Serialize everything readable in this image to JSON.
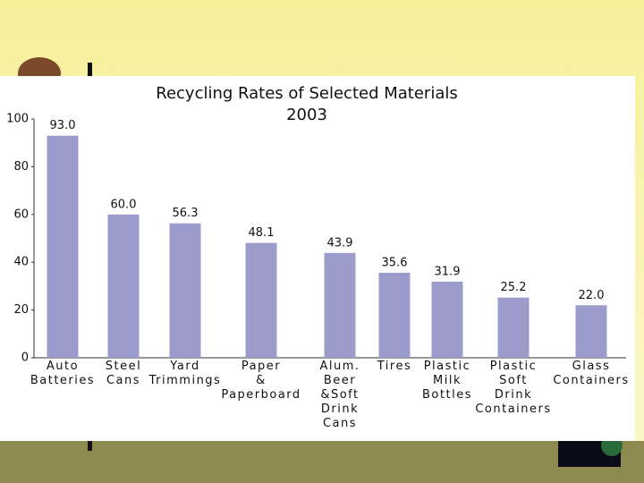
{
  "chart_data": {
    "type": "bar",
    "title": "Recycling Rates of Selected Materials",
    "subtitle": "2003",
    "categories": [
      "Auto\nBatteries",
      "Steel\nCans",
      "Yard\nTrimmings",
      "Paper\n&\nPaperboard",
      "Alum.\nBeer\n&Soft\nDrink\nCans",
      "Tires",
      "Plastic\nMilk\nBottles",
      "Plastic\nSoft\nDrink\nContainers",
      "Glass\nContainers"
    ],
    "values": [
      93.0,
      60.0,
      56.3,
      48.1,
      43.9,
      35.6,
      31.9,
      25.2,
      22.0
    ],
    "value_labels": [
      "93.0",
      "60.0",
      "56.3",
      "48.1",
      "43.9",
      "35.6",
      "31.9",
      "25.2",
      "22.0"
    ],
    "color": "#9c9ccc",
    "ylim": [
      0,
      100
    ],
    "yticks": [
      0,
      20,
      40,
      60,
      80,
      100
    ],
    "grid": false
  }
}
